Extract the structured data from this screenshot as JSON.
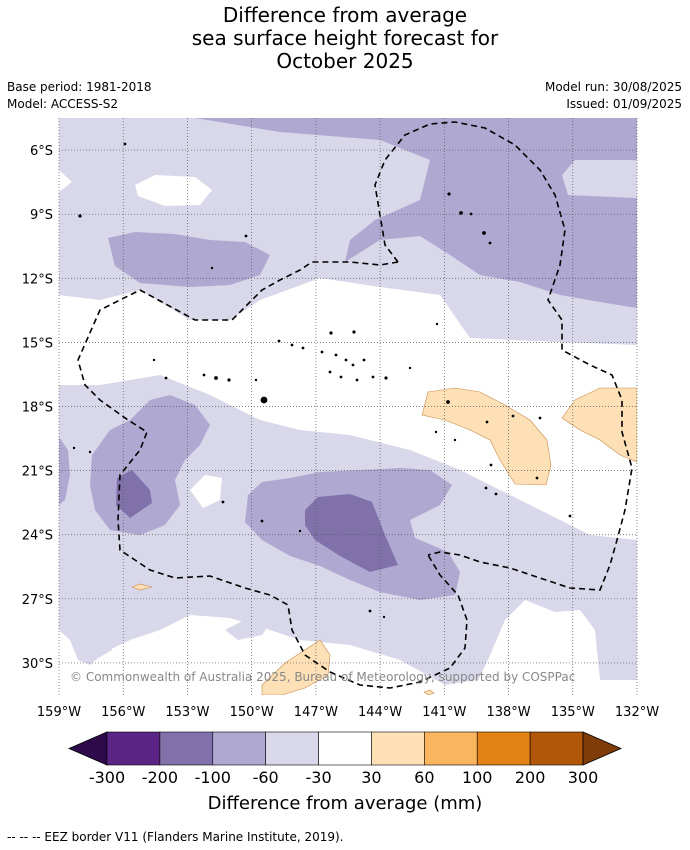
{
  "title_lines": [
    "Difference from average",
    "sea surface height forecast for",
    "October 2025"
  ],
  "meta": {
    "base_period": "Base period: 1981-2018",
    "model": "Model: ACCESS-S2",
    "model_run": "Model run: 30/08/2025",
    "issued": "Issued: 01/09/2025"
  },
  "map": {
    "lon_range": [
      -159,
      -132
    ],
    "lat_range": [
      -31.5,
      -4.5
    ],
    "lat_ticks": [
      "6°S",
      "9°S",
      "12°S",
      "15°S",
      "18°S",
      "21°S",
      "24°S",
      "27°S",
      "30°S"
    ],
    "lon_ticks": [
      "159°W",
      "156°W",
      "153°W",
      "150°W",
      "147°W",
      "144°W",
      "141°W",
      "138°W",
      "135°W",
      "132°W"
    ],
    "grid": true,
    "credit": "© Commonwealth of Australia 2025, Bureau of Meteorology, supported by COSPPac"
  },
  "colorbar": {
    "label": "Difference from average (mm)",
    "tick_labels": [
      "-300",
      "-200",
      "-100",
      "-60",
      "-30",
      "30",
      "60",
      "100",
      "200",
      "300"
    ],
    "colors": [
      "#2f0a4a",
      "#5b2586",
      "#8071ab",
      "#afa8d0",
      "#d8d8ea",
      "#ffffff",
      "#fde0b6",
      "#fbb55e",
      "#e38215",
      "#b15808",
      "#7f3b08"
    ]
  },
  "footer": "--  --  -- EEZ border V11 (Flanders Marine Institute, 2019)."
}
